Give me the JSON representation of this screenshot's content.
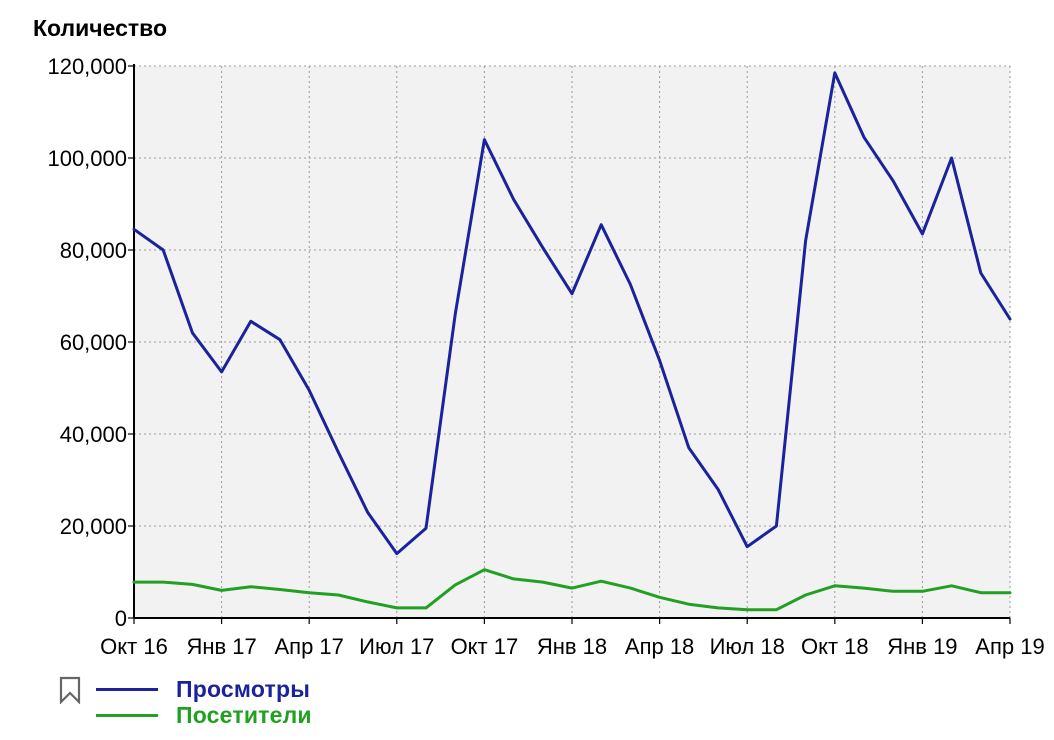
{
  "chart_data": {
    "type": "line",
    "ylabel": "Количество",
    "ylim": [
      0,
      120000
    ],
    "y_ticks": [
      "0",
      "20,000",
      "40,000",
      "60,000",
      "80,000",
      "100,000",
      "120,000"
    ],
    "y_tick_values": [
      0,
      20000,
      40000,
      60000,
      80000,
      100000,
      120000
    ],
    "x_tick_labels": [
      "Окт 16",
      "Янв 17",
      "Апр 17",
      "Июл 17",
      "Окт 17",
      "Янв 18",
      "Апр 18",
      "Июл 18",
      "Окт 18",
      "Янв 19",
      "Апр 19"
    ],
    "x": [
      "2016-10",
      "2016-11",
      "2016-12",
      "2017-01",
      "2017-02",
      "2017-03",
      "2017-04",
      "2017-05",
      "2017-06",
      "2017-07",
      "2017-08",
      "2017-09",
      "2017-10",
      "2017-11",
      "2017-12",
      "2018-01",
      "2018-02",
      "2018-03",
      "2018-04",
      "2018-05",
      "2018-06",
      "2018-07",
      "2018-08",
      "2018-09",
      "2018-10",
      "2018-11",
      "2018-12",
      "2019-01",
      "2019-02",
      "2019-03",
      "2019-04"
    ],
    "series": [
      {
        "name": "Просмотры",
        "color": "#1a239c",
        "values": [
          84500,
          80000,
          62000,
          53500,
          64500,
          60500,
          49500,
          36000,
          23000,
          14000,
          19500,
          66000,
          104000,
          91000,
          80500,
          70500,
          85500,
          72500,
          56000,
          37000,
          28000,
          15500,
          20000,
          82000,
          118500,
          104500,
          95000,
          83500,
          100000,
          75000,
          65000
        ]
      },
      {
        "name": "Посетители",
        "color": "#22a022",
        "values": [
          7800,
          7800,
          7300,
          6000,
          6800,
          6200,
          5500,
          5000,
          3500,
          2200,
          2200,
          7200,
          10500,
          8500,
          7800,
          6500,
          8000,
          6500,
          4500,
          3000,
          2200,
          1800,
          1800,
          5000,
          7000,
          6500,
          5800,
          5800,
          7000,
          5500,
          5500
        ]
      }
    ],
    "grid": true,
    "legend_position": "bottom-left"
  },
  "colors": {
    "plot_background": "#f2f2f2",
    "grid": "#9a9a9a",
    "axis": "#000000"
  },
  "legend_icon": "bookmark-icon"
}
